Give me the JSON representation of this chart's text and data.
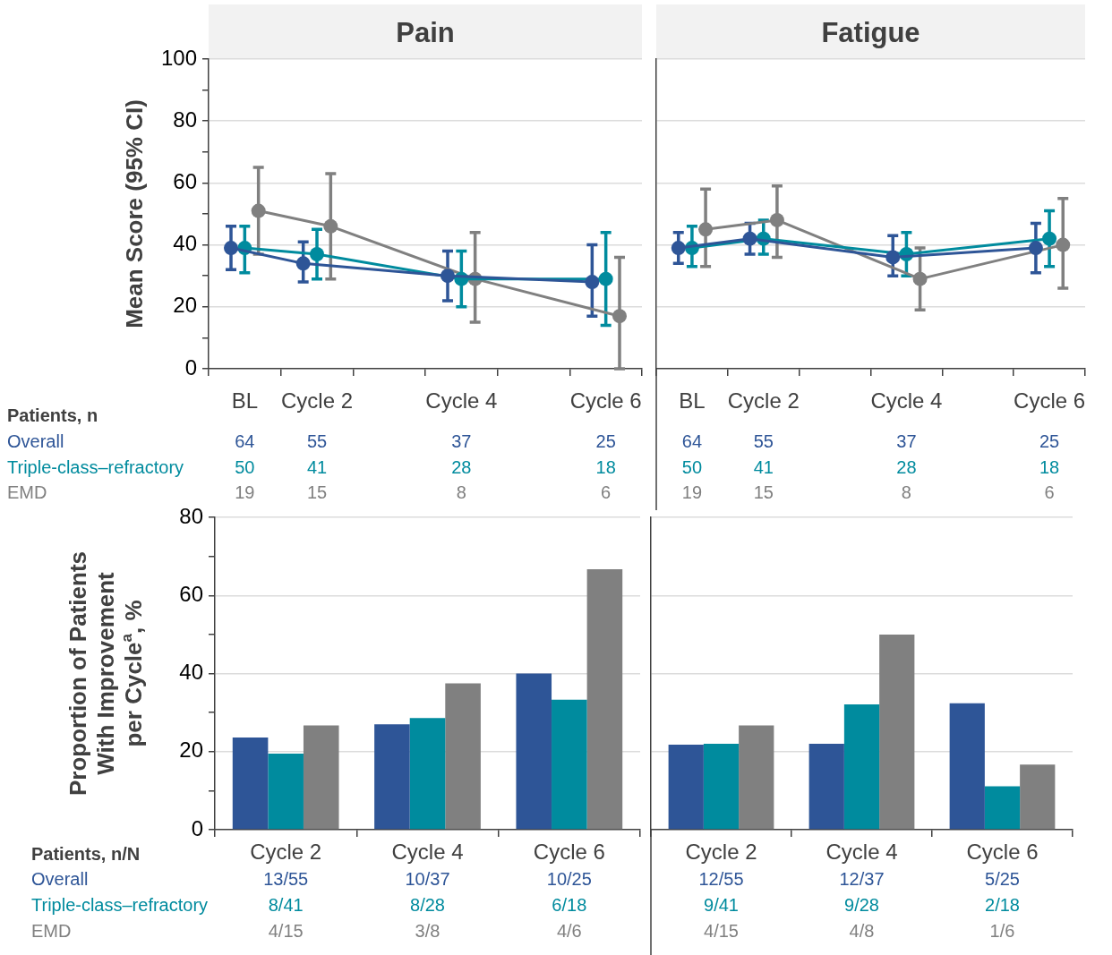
{
  "chart_data": [
    {
      "type": "line",
      "title": "Pain",
      "ylabel": "Mean Score (95% CI)",
      "categories": [
        "BL",
        "Cycle 2",
        null,
        "Cycle 4",
        null,
        "Cycle 6"
      ],
      "ylim": [
        0,
        100
      ],
      "yticks": [
        0,
        {
          "value": 10,
          "label": null
        },
        20,
        {
          "value": 30,
          "label": null
        },
        40,
        {
          "value": 50,
          "label": null
        },
        60,
        {
          "value": 70,
          "label": null
        },
        80,
        {
          "value": 90,
          "label": null
        },
        100
      ],
      "grid": "y",
      "marker": "circle",
      "line_style": "solid",
      "legend_title": "Patients, n",
      "series": [
        {
          "name": "Overall",
          "color": "#2e5597",
          "values": [
            39,
            34,
            null,
            30,
            null,
            28
          ],
          "errors": [
            [
              32,
              46
            ],
            [
              28,
              41
            ],
            null,
            [
              22,
              38
            ],
            null,
            [
              17,
              40
            ]
          ]
        },
        {
          "name": "Triple-class–refractory",
          "color": "#008b9e",
          "values": [
            39,
            37,
            null,
            29,
            null,
            29
          ],
          "errors": [
            [
              31,
              46
            ],
            [
              29,
              45
            ],
            null,
            [
              20,
              38
            ],
            null,
            [
              14,
              44
            ]
          ]
        },
        {
          "name": "EMD",
          "color": "#808080",
          "values": [
            51,
            46,
            null,
            29,
            null,
            17
          ],
          "errors": [
            [
              37,
              65
            ],
            [
              29,
              63
            ],
            null,
            [
              15,
              44
            ],
            null,
            [
              0,
              36
            ]
          ]
        }
      ],
      "annotations": [
        "64",
        "55",
        "37",
        "25",
        "50",
        "41",
        "28",
        "18",
        "19",
        "15",
        "8",
        "6"
      ]
    },
    {
      "type": "line",
      "title": "Fatigue",
      "categories": [
        "BL",
        "Cycle 2",
        null,
        "Cycle 4",
        null,
        "Cycle 6"
      ],
      "ylim": [
        0,
        100
      ],
      "yticks": [
        0,
        20,
        40,
        60,
        80,
        100
      ],
      "grid": "y",
      "marker": "circle",
      "line_style": "solid",
      "tick_labels": "x",
      "series": [
        {
          "color": "#2e5597",
          "values": [
            39,
            42,
            null,
            36,
            null,
            39
          ],
          "errors": [
            [
              34,
              44
            ],
            [
              37,
              47
            ],
            null,
            [
              30,
              43
            ],
            null,
            [
              31,
              47
            ]
          ]
        },
        {
          "color": "#008b9e",
          "values": [
            39,
            42,
            null,
            37,
            null,
            42
          ],
          "errors": [
            [
              33,
              46
            ],
            [
              37,
              48
            ],
            null,
            [
              30,
              44
            ],
            null,
            [
              33,
              51
            ]
          ]
        },
        {
          "color": "#808080",
          "values": [
            45,
            48,
            null,
            29,
            null,
            40
          ],
          "errors": [
            [
              33,
              58
            ],
            [
              36,
              59
            ],
            null,
            [
              19,
              39
            ],
            null,
            [
              26,
              55
            ]
          ]
        }
      ],
      "annotations": [
        "64",
        "55",
        "37",
        "25",
        "50",
        "41",
        "28",
        "18",
        "19",
        "15",
        "8",
        "6"
      ]
    },
    {
      "type": "bar",
      "ylabel": "Proportion of Patients\nWith Improvement\nper Cycle$^{a}$, %",
      "categories": [
        "Cycle 2",
        "Cycle 4",
        "Cycle 6"
      ],
      "ylim": [
        0,
        80
      ],
      "yticks": [
        0,
        {
          "value": 10,
          "label": null
        },
        20,
        {
          "value": 30,
          "label": null
        },
        40,
        {
          "value": 50,
          "label": null
        },
        60,
        {
          "value": 70,
          "label": null
        },
        80
      ],
      "grid": "y",
      "legend_title": "Patients, n/N",
      "series": [
        {
          "name": "Overall",
          "color": "#2e5597",
          "values": [
            23.6,
            27.0,
            40.0
          ]
        },
        {
          "name": "Triple-class–refractory",
          "color": "#008b9e",
          "values": [
            19.5,
            28.6,
            33.3
          ]
        },
        {
          "name": "EMD",
          "color": "#808080",
          "values": [
            26.7,
            37.5,
            66.7
          ]
        }
      ],
      "annotations": [
        "13/55",
        "10/37",
        "10/25",
        "8/41",
        "8/28",
        "6/18",
        "4/15",
        "3/8",
        "4/6"
      ]
    },
    {
      "type": "bar",
      "categories": [
        "Cycle 2",
        "Cycle 4",
        "Cycle 6"
      ],
      "ylim": [
        0,
        80
      ],
      "yticks": [
        0,
        20,
        40,
        60,
        80
      ],
      "grid": "y",
      "tick_labels": "x",
      "series": [
        {
          "color": "#2e5597",
          "values": [
            21.8,
            22.0,
            32.4
          ]
        },
        {
          "color": "#008b9e",
          "values": [
            22.0,
            32.1,
            11.1
          ]
        },
        {
          "color": "#808080",
          "values": [
            26.7,
            50.0,
            16.7
          ]
        }
      ],
      "annotations": [
        "12/55",
        "12/37",
        "5/25",
        "9/41",
        "9/28",
        "2/18",
        "4/15",
        "4/8",
        "1/6"
      ]
    }
  ]
}
